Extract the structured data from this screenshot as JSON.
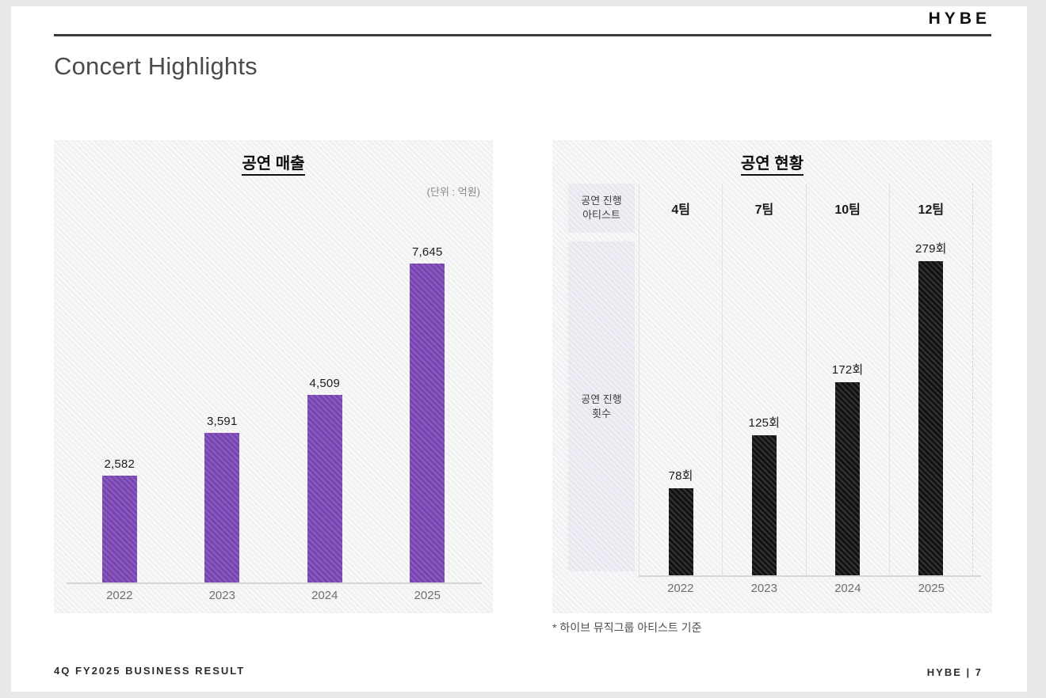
{
  "page": {
    "logo": "HYBE",
    "title": "Concert Highlights",
    "footnote": "* 하이브 뮤직그룹 아티스트 기준",
    "footer_left": "4Q FY2025 BUSINESS RESULT",
    "footer_right": "HYBE | 7"
  },
  "chart_data": [
    {
      "type": "bar",
      "title": "공연 매출",
      "unit_label": "(단위 : 억원)",
      "categories": [
        "2022",
        "2023",
        "2024",
        "2025"
      ],
      "values": [
        2582,
        3591,
        4509,
        7645
      ],
      "value_labels": [
        "2,582",
        "3,591",
        "4,509",
        "7,645"
      ],
      "bar_color": "#7844b2",
      "ylim": [
        0,
        7645
      ],
      "grid": false,
      "legend": "none"
    },
    {
      "type": "bar",
      "title": "공연 현황",
      "row_header_artists": "공연 진행\n아티스트",
      "row_header_shows": "공연 진행\n횟수",
      "artists_per_year": [
        "4팀",
        "7팀",
        "10팀",
        "12팀"
      ],
      "categories": [
        "2022",
        "2023",
        "2024",
        "2025"
      ],
      "values": [
        78,
        125,
        172,
        279
      ],
      "value_labels": [
        "78회",
        "125회",
        "172회",
        "279회"
      ],
      "bar_color": "#121212",
      "ylim": [
        0,
        279
      ],
      "grid": false,
      "legend": "none"
    }
  ]
}
